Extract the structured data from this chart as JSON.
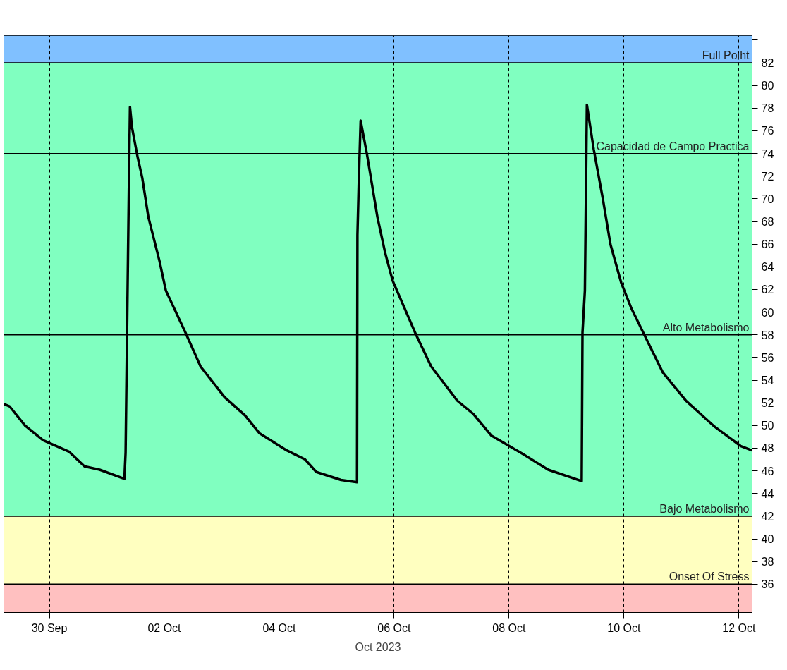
{
  "chart_data": {
    "type": "line",
    "x": [
      "2023-09-29T05:00",
      "2023-09-29T07:20",
      "2023-09-29T13:50",
      "2023-09-29T21:20",
      "2023-09-30T08:10",
      "2023-09-30T14:40",
      "2023-09-30T21:00",
      "2023-10-01T07:20",
      "2023-10-01T07:50",
      "2023-10-01T08:50",
      "2023-10-01T09:10",
      "2023-10-01T09:40",
      "2023-10-01T10:30",
      "2023-10-01T12:50",
      "2023-10-01T14:50",
      "2023-10-01T17:20",
      "2023-10-01T22:00",
      "2023-10-02T00:40",
      "2023-10-02T08:50",
      "2023-10-02T15:10",
      "2023-10-03T01:10",
      "2023-10-03T09:40",
      "2023-10-03T15:50",
      "2023-10-04T03:10",
      "2023-10-04T10:50",
      "2023-10-04T15:30",
      "2023-10-05T01:50",
      "2023-10-05T08:30",
      "2023-10-05T08:40",
      "2023-10-05T09:20",
      "2023-10-05T10:00",
      "2023-10-05T12:40",
      "2023-10-05T17:00",
      "2023-10-05T20:10",
      "2023-10-05T23:20",
      "2023-10-06T09:10",
      "2023-10-06T15:30",
      "2023-10-07T02:20",
      "2023-10-07T09:10",
      "2023-10-07T16:40",
      "2023-10-08T05:40",
      "2023-10-08T16:20",
      "2023-10-09T06:20",
      "2023-10-09T06:40",
      "2023-10-09T07:40",
      "2023-10-09T08:10",
      "2023-10-09T08:30",
      "2023-10-09T11:20",
      "2023-10-09T15:10",
      "2023-10-09T18:20",
      "2023-10-09T22:50",
      "2023-10-10T03:10",
      "2023-10-10T08:30",
      "2023-10-10T16:10",
      "2023-10-11T01:50",
      "2023-10-11T13:50",
      "2023-10-12T00:40",
      "2023-10-12T05:30"
    ],
    "series": [
      {
        "color": "#000000",
        "values": [
          51.9,
          51.7,
          50.0,
          48.7,
          47.7,
          46.4,
          46.1,
          45.3,
          47.6,
          64.9,
          70.5,
          78.1,
          76.3,
          73.7,
          71.8,
          68.4,
          64.5,
          61.9,
          58.2,
          55.2,
          52.5,
          50.9,
          49.3,
          47.8,
          47.0,
          45.9,
          45.2,
          45.0,
          66.8,
          72.3,
          76.9,
          73.9,
          68.4,
          65.3,
          62.8,
          58.0,
          55.2,
          52.2,
          51.0,
          49.1,
          47.5,
          46.1,
          45.1,
          58.2,
          61.9,
          71.6,
          78.3,
          74.4,
          70.0,
          66.0,
          62.6,
          60.3,
          58.0,
          54.7,
          52.2,
          49.9,
          48.2,
          47.8
        ]
      }
    ],
    "xlim": [
      "2023-09-29T05:00",
      "2023-10-12T05:30"
    ],
    "xticks": [
      {
        "value": "2023-09-30",
        "label": "30 Sep"
      },
      {
        "value": "2023-10-02",
        "label": "02 Oct"
      },
      {
        "value": "2023-10-04",
        "label": "04 Oct"
      },
      {
        "value": "2023-10-06",
        "label": "06 Oct"
      },
      {
        "value": "2023-10-08",
        "label": "08 Oct"
      },
      {
        "value": "2023-10-10",
        "label": "10 Oct"
      },
      {
        "value": "2023-10-12",
        "label": "12 Oct"
      }
    ],
    "ylim": [
      33.5,
      84.4
    ],
    "yticks": [
      {
        "value": 34,
        "label": null
      },
      36,
      38,
      40,
      42,
      44,
      46,
      48,
      50,
      52,
      54,
      56,
      58,
      60,
      62,
      64,
      66,
      68,
      70,
      72,
      74,
      76,
      78,
      80,
      82,
      {
        "value": 84,
        "label": null
      }
    ],
    "grid": "x",
    "marker": "none",
    "line_style": "solid",
    "bands": [
      {
        "axis": "y",
        "from": 82,
        "to": 84.4,
        "color": "#80c0ff"
      },
      {
        "axis": "y",
        "from": 42,
        "to": 82,
        "color": "#80ffc0"
      },
      {
        "axis": "y",
        "from": 36,
        "to": 42,
        "color": "#ffffc0"
      },
      {
        "axis": "y",
        "from": 33.5,
        "to": 36,
        "color": "#ffc0c0"
      }
    ],
    "ref_lines": [
      {
        "axis": "y",
        "value": 82,
        "label": "Full Poiht",
        "color": "#000000"
      },
      {
        "axis": "y",
        "value": 74,
        "label": "Capacidad de Campo Practica",
        "color": "#000000"
      },
      {
        "axis": "y",
        "value": 58,
        "label": "Alto Metabolismo",
        "color": "#000000"
      },
      {
        "axis": "y",
        "value": 42,
        "label": "Bajo Metabolismo",
        "color": "#000000"
      },
      {
        "axis": "y",
        "value": 36,
        "label": "Onset Of Stress",
        "color": "#000000"
      }
    ],
    "annotations": [
      "Oct 2023"
    ]
  }
}
